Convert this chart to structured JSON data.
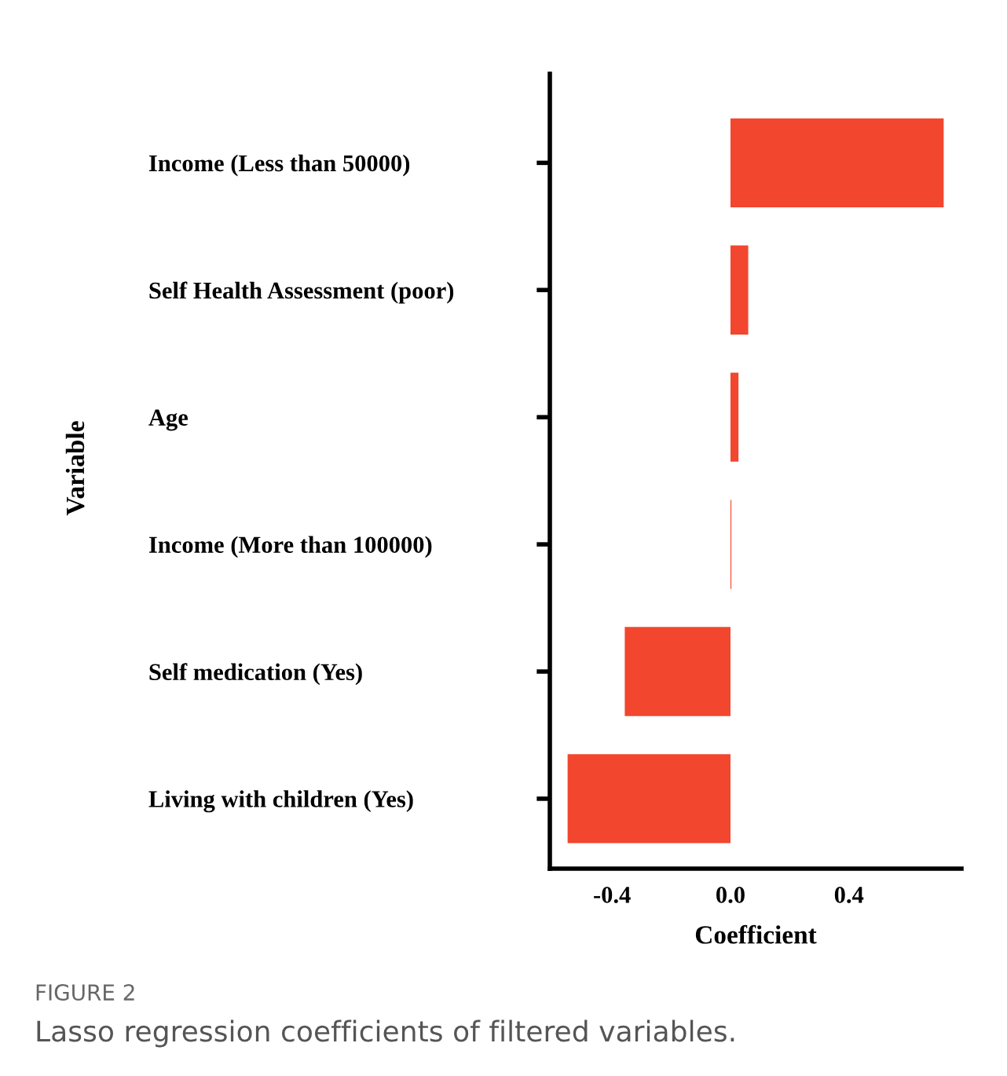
{
  "chart_data": {
    "type": "bar",
    "orientation": "horizontal",
    "xlabel": "Coefficient",
    "ylabel": "Variable",
    "categories": [
      "Income (Less than 50000)",
      "Self Health Assessment (poor)",
      "Age",
      "Income (More than 100000)",
      "Self medication (Yes)",
      "Living with children (Yes)"
    ],
    "values": [
      0.72,
      0.06,
      0.027,
      0.003,
      -0.357,
      -0.55
    ],
    "color": "#f2462e",
    "xlim": [
      -0.61,
      0.78
    ],
    "xticks": [
      -0.4,
      {
        "value": 0.0,
        "label": "0.0"
      },
      0.4
    ],
    "grid": false,
    "annotations": [
      "FIGURE 2",
      "Lasso regression coefficients of filtered variables."
    ]
  }
}
